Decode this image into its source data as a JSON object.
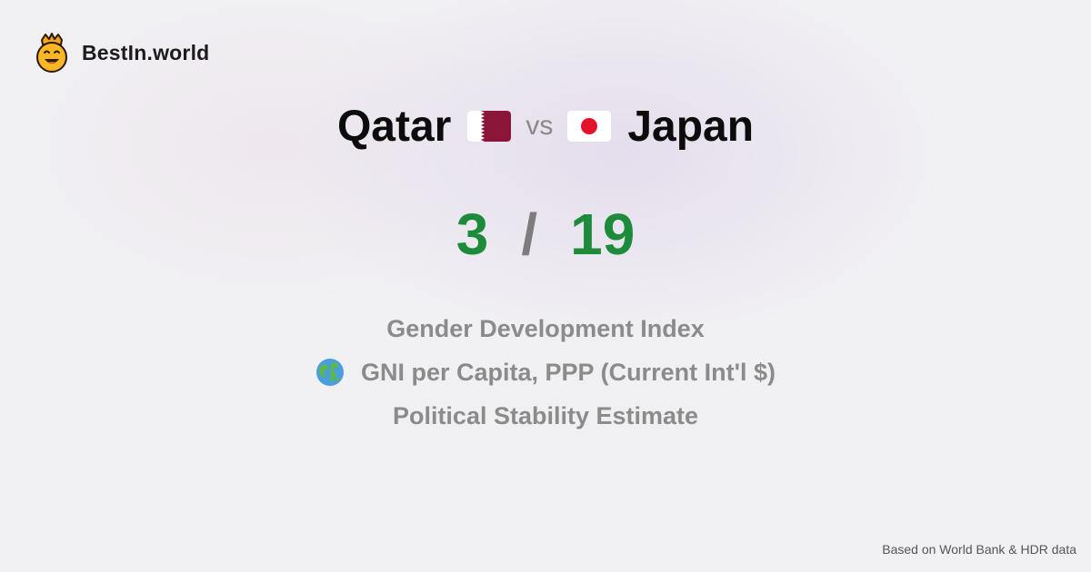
{
  "brand": {
    "name": "BestIn.world",
    "logo_icon": "crowned-smiley-icon"
  },
  "comparison": {
    "country_a": "Qatar",
    "country_a_flag": "qatar-flag-icon",
    "vs_label": "vs",
    "country_b": "Japan",
    "country_b_flag": "japan-flag-icon"
  },
  "score": {
    "a": "3",
    "separator": "/",
    "b": "19",
    "color": "#1e8a3c"
  },
  "metrics": [
    {
      "label": "Gender Development Index"
    },
    {
      "label": "GNI per Capita, PPP (Current Int'l $)",
      "icon": "globe-icon"
    },
    {
      "label": "Political Stability Estimate"
    }
  ],
  "footer": {
    "source": "Based on World Bank & HDR data"
  },
  "colors": {
    "qatar_maroon": "#8a1538",
    "japan_red": "#e3122a",
    "muted_text": "#8b8b8b"
  }
}
